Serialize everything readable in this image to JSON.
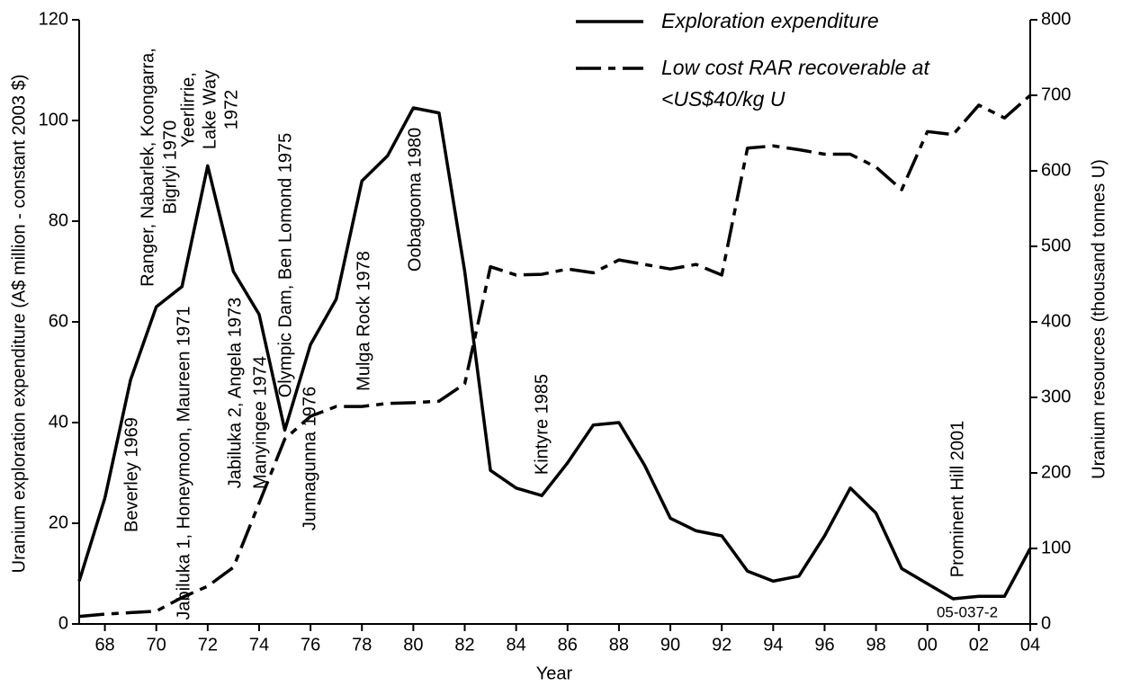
{
  "chart_data": {
    "type": "line",
    "x_label": "Year",
    "y_label": "Uranium exploration expenditure (A$ million - constant 2003 $)",
    "y2_label": "Uranium resources (thousand tonnes U)",
    "x": [
      1967,
      1968,
      1969,
      1970,
      1971,
      1972,
      1973,
      1974,
      1975,
      1976,
      1977,
      1978,
      1979,
      1980,
      1981,
      1982,
      1983,
      1984,
      1985,
      1986,
      1987,
      1988,
      1989,
      1990,
      1991,
      1992,
      1993,
      1994,
      1995,
      1996,
      1997,
      1998,
      1999,
      2000,
      2001,
      2002,
      2003,
      2004
    ],
    "xlim": [
      1967,
      2004
    ],
    "xticks": [
      {
        "value": 1968,
        "label": "68"
      },
      {
        "value": 1970,
        "label": "70"
      },
      {
        "value": 1972,
        "label": "72"
      },
      {
        "value": 1974,
        "label": "74"
      },
      {
        "value": 1976,
        "label": "76"
      },
      {
        "value": 1978,
        "label": "78"
      },
      {
        "value": 1980,
        "label": "80"
      },
      {
        "value": 1982,
        "label": "82"
      },
      {
        "value": 1984,
        "label": "84"
      },
      {
        "value": 1986,
        "label": "86"
      },
      {
        "value": 1988,
        "label": "88"
      },
      {
        "value": 1990,
        "label": "90"
      },
      {
        "value": 1992,
        "label": "92"
      },
      {
        "value": 1994,
        "label": "94"
      },
      {
        "value": 1996,
        "label": "96"
      },
      {
        "value": 1998,
        "label": "98"
      },
      {
        "value": 2000,
        "label": "00"
      },
      {
        "value": 2002,
        "label": "02"
      },
      {
        "value": 2004,
        "label": "04"
      }
    ],
    "ylim": [
      0,
      120
    ],
    "yticks": [
      0,
      20,
      40,
      60,
      80,
      100,
      120
    ],
    "y2lim": [
      0,
      800
    ],
    "y2ticks": [
      0,
      100,
      200,
      300,
      400,
      500,
      600,
      700,
      800
    ],
    "series": [
      {
        "name": "Exploration expenditure",
        "color": "#000000",
        "linestyle": "solid",
        "values": [
          8.5,
          25,
          48.5,
          63,
          67,
          91,
          70,
          61.5,
          38.5,
          55.5,
          64.5,
          88,
          93,
          102.5,
          101.5,
          70,
          30.5,
          27,
          25.5,
          32,
          39.5,
          40,
          31.5,
          21,
          18.5,
          17.5,
          10.5,
          8.5,
          9.5,
          17.5,
          27,
          22,
          11,
          8,
          5,
          5.5,
          5.5,
          15
        ]
      },
      {
        "name": "Low cost RAR recoverable at <US$40/kg U",
        "color": "#000000",
        "linestyle": "dashdot",
        "axis": "y2",
        "values": [
          10,
          13,
          15,
          17,
          35,
          50,
          75,
          160,
          245,
          275,
          288,
          288,
          292,
          293,
          295,
          318,
          473,
          462,
          463,
          470,
          465,
          482,
          476,
          470,
          476,
          462,
          630,
          633,
          628,
          622,
          622,
          605,
          575,
          652,
          648,
          687,
          670,
          700
        ]
      }
    ],
    "annotations": [
      [
        "Beverley 1969"
      ],
      [
        "Jabiluka 1, Honeymoon, Maureen 1971"
      ],
      [
        "Ranger, Nabarlek, Koongarra,",
        "Bigrlyi 1970"
      ],
      [
        "Yeerlirrie,",
        "Lake Way",
        "1972"
      ],
      [
        "Jabiluka 2, Angela 1973"
      ],
      [
        "Manyingee 1974"
      ],
      [
        "Olympic Dam, Ben Lomond 1975"
      ],
      [
        "Junnagunna 1976"
      ],
      [
        "Mulga Rock 1978"
      ],
      [
        "Oobagooma 1980"
      ],
      [
        "Kintyre 1985"
      ],
      [
        "Prominent Hill 2001"
      ]
    ],
    "figure_code": "05-037-2"
  }
}
